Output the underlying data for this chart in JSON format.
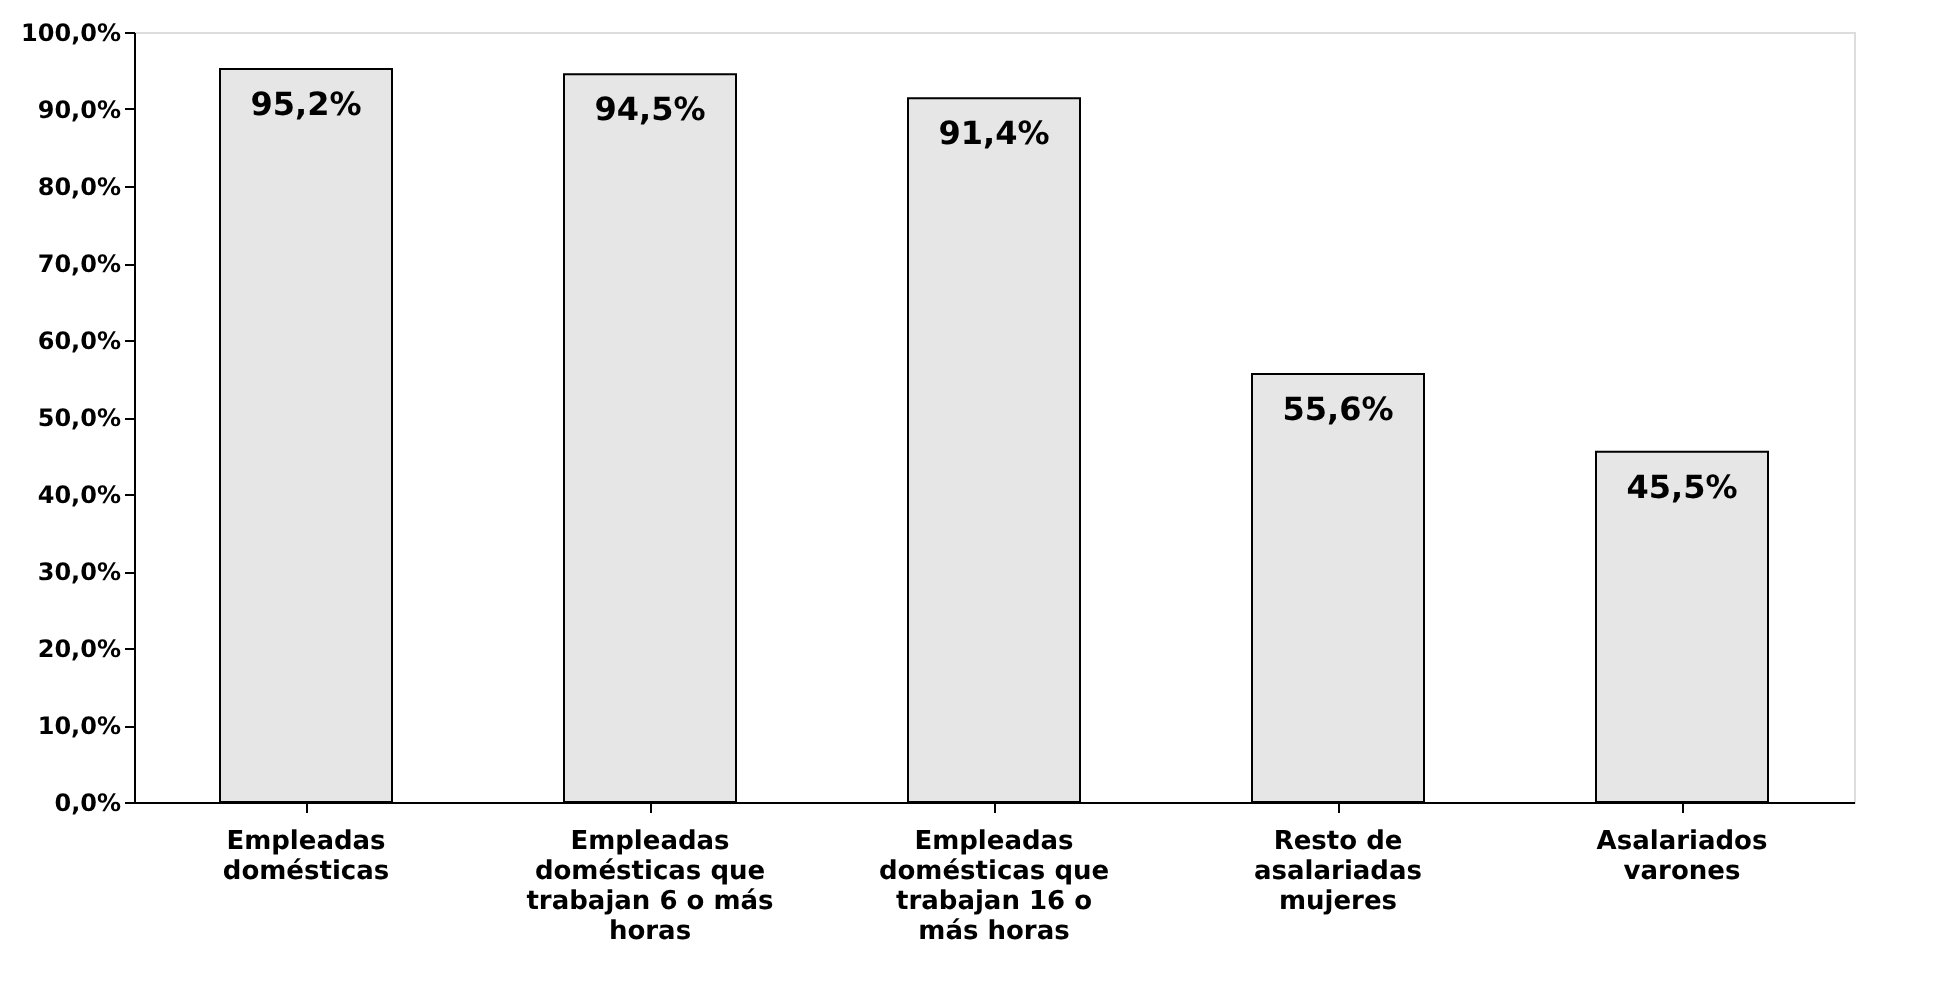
{
  "chart_data": {
    "type": "bar",
    "categories": [
      "Empleadas domésticas",
      "Empleadas domésticas que trabajan 6 o más horas",
      "Empleadas domésticas que trabajan 16 o más horas",
      "Resto de asalariadas mujeres",
      "Asalariados varones"
    ],
    "values": [
      95.2,
      94.5,
      91.4,
      55.6,
      45.5
    ],
    "value_labels": [
      "95,2%",
      "94,5%",
      "91,4%",
      "55,6%",
      "45,5%"
    ],
    "color": "#e6e6e6",
    "ylim": [
      0,
      100
    ],
    "yticks": [
      {
        "value": 0,
        "label": "0,0%"
      },
      {
        "value": 10,
        "label": "10,0%"
      },
      {
        "value": 20,
        "label": "20,0%"
      },
      {
        "value": 30,
        "label": "30,0%"
      },
      {
        "value": 40,
        "label": "40,0%"
      },
      {
        "value": 50,
        "label": "50,0%"
      },
      {
        "value": 60,
        "label": "60,0%"
      },
      {
        "value": 70,
        "label": "70,0%"
      },
      {
        "value": 80,
        "label": "80,0%"
      },
      {
        "value": 90,
        "label": "90,0%"
      },
      {
        "value": 100,
        "label": "100,0%"
      }
    ],
    "grid": false
  }
}
